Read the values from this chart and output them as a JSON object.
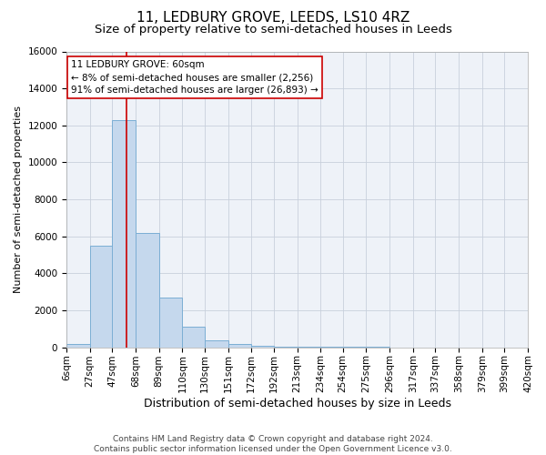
{
  "title1": "11, LEDBURY GROVE, LEEDS, LS10 4RZ",
  "title2": "Size of property relative to semi-detached houses in Leeds",
  "xlabel": "Distribution of semi-detached houses by size in Leeds",
  "ylabel": "Number of semi-detached properties",
  "footer": "Contains HM Land Registry data © Crown copyright and database right 2024.\nContains public sector information licensed under the Open Government Licence v3.0.",
  "annotation_line1": "11 LEDBURY GROVE: 60sqm",
  "annotation_line2": "← 8% of semi-detached houses are smaller (2,256)",
  "annotation_line3": "91% of semi-detached houses are larger (26,893) →",
  "property_size": 60,
  "bar_edges": [
    6,
    27,
    47,
    68,
    89,
    110,
    130,
    151,
    172,
    192,
    213,
    234,
    254,
    275,
    296,
    317,
    337,
    358,
    379,
    399,
    420
  ],
  "bar_heights": [
    200,
    5500,
    12300,
    6200,
    2700,
    1100,
    400,
    200,
    100,
    50,
    50,
    30,
    20,
    10,
    5,
    5,
    5,
    5,
    5,
    5
  ],
  "bar_color": "#c5d8ed",
  "bar_edge_color": "#7baed4",
  "red_line_color": "#cc0000",
  "ylim": [
    0,
    16000
  ],
  "yticks": [
    0,
    2000,
    4000,
    6000,
    8000,
    10000,
    12000,
    14000,
    16000
  ],
  "grid_color": "#c8d0dc",
  "background_color": "#eef2f8",
  "annotation_box_color": "white",
  "annotation_box_edge": "#cc0000",
  "title1_fontsize": 11,
  "title2_fontsize": 9.5,
  "xlabel_fontsize": 9,
  "ylabel_fontsize": 8,
  "tick_fontsize": 7.5,
  "annotation_fontsize": 7.5,
  "footer_fontsize": 6.5
}
